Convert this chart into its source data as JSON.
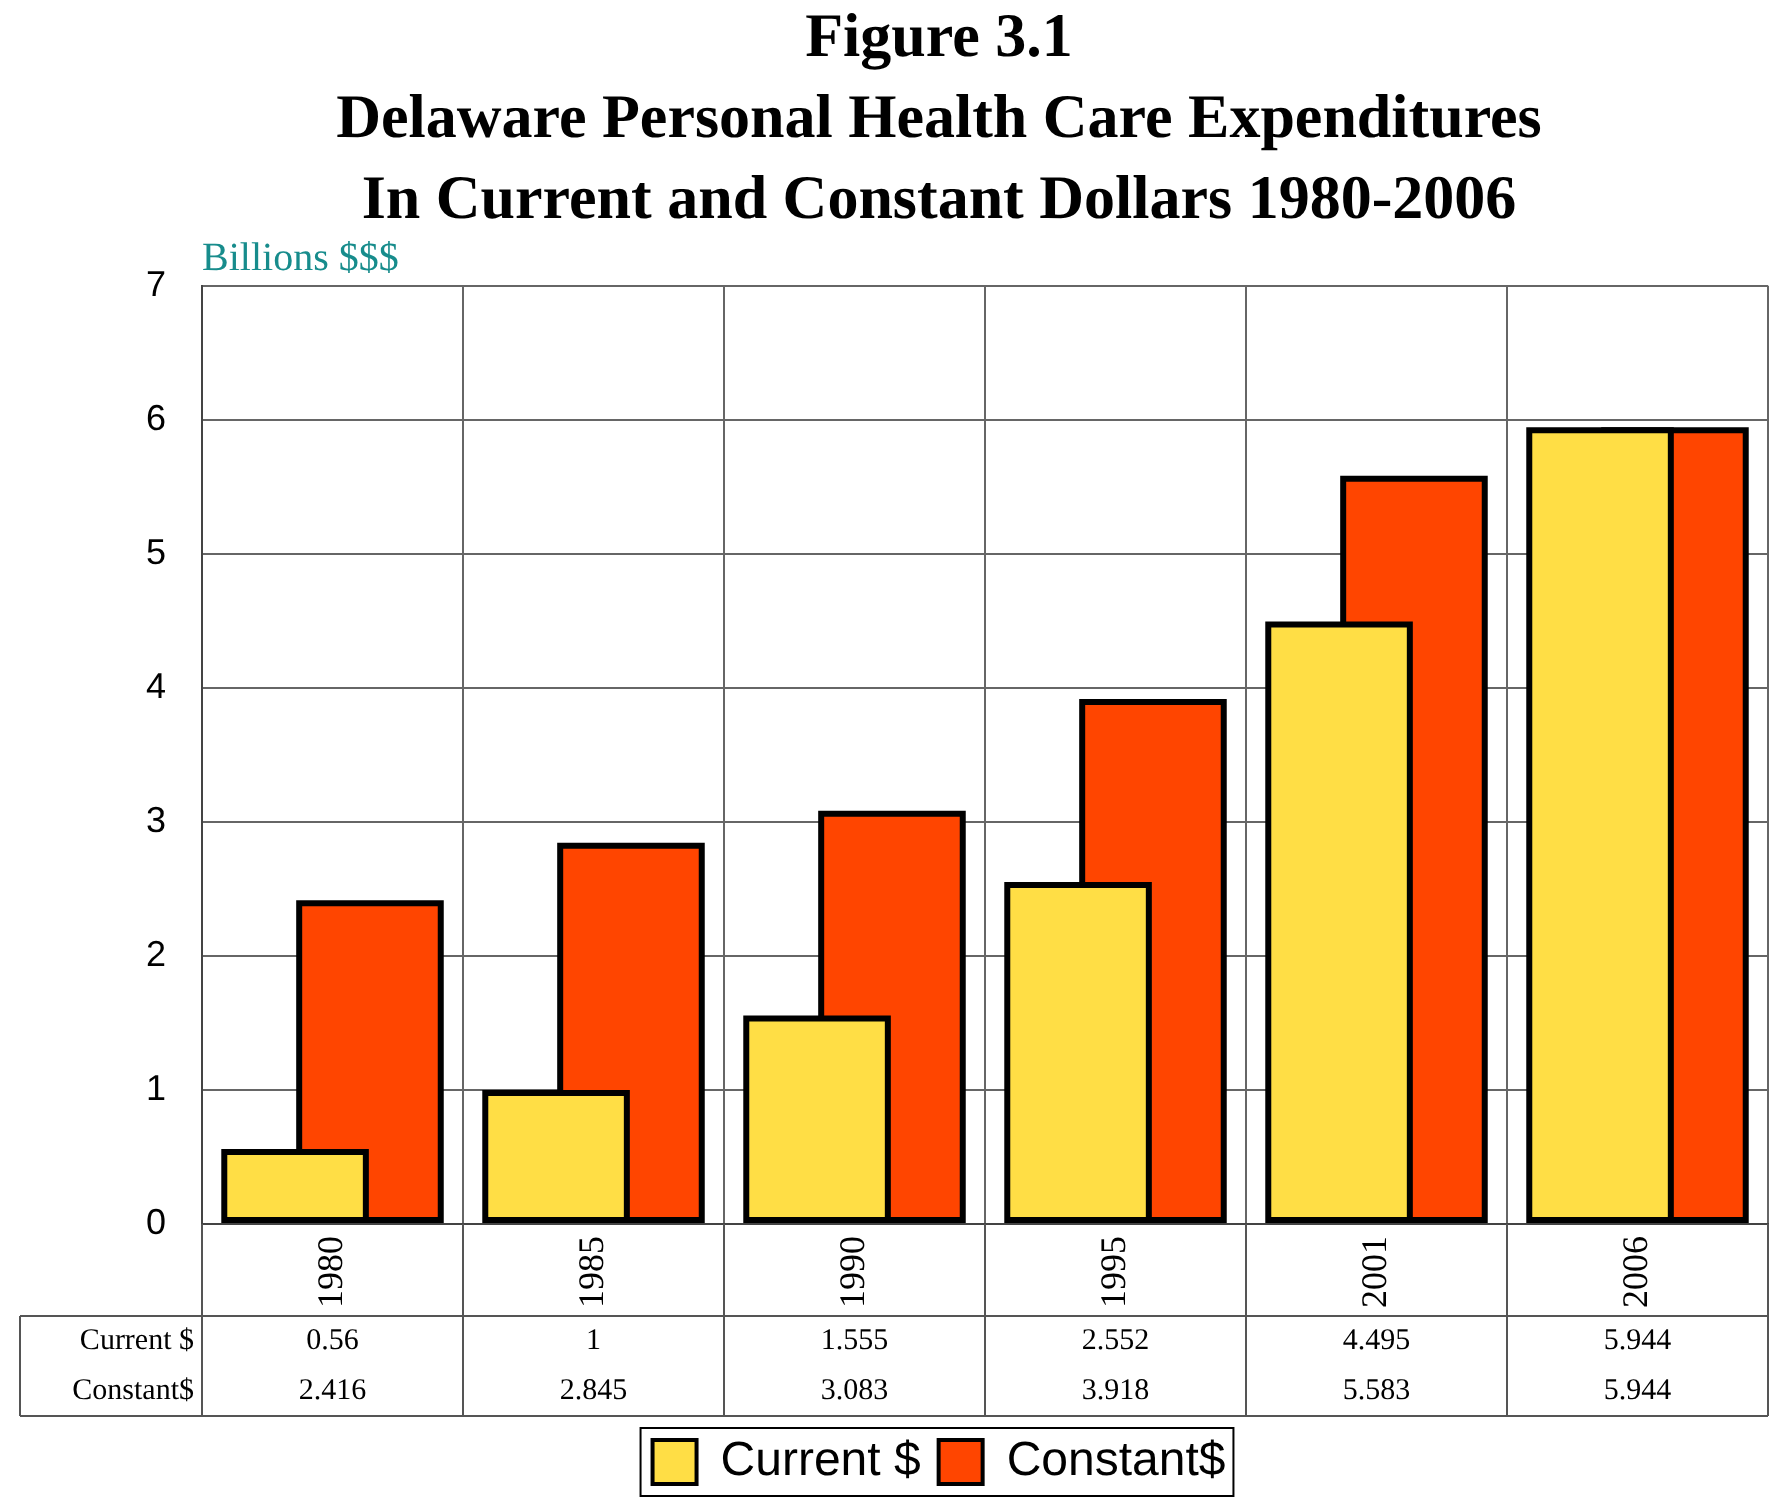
{
  "chart_data": {
    "type": "bar",
    "title": "Figure 3.1\nDelaware Personal Health Care Expenditures\nIn Current and Constant Dollars 1980-2006",
    "ylabel": "Billions $$$",
    "categories": [
      "1980",
      "1985",
      "1990",
      "1995",
      "2001",
      "2006"
    ],
    "series": [
      {
        "name": "Current $",
        "color": "#ffde45",
        "values": [
          0.56,
          1,
          1.555,
          2.552,
          4.495,
          5.944
        ]
      },
      {
        "name": "Constant$",
        "color": "#ff4500",
        "values": [
          2.416,
          2.845,
          3.083,
          3.918,
          5.583,
          5.944
        ]
      }
    ],
    "ylim": [
      0,
      7
    ],
    "yticks": [
      0,
      1,
      2,
      3,
      4,
      5,
      6,
      7
    ],
    "grid": true,
    "legend": "bottom",
    "data_labels": true
  }
}
